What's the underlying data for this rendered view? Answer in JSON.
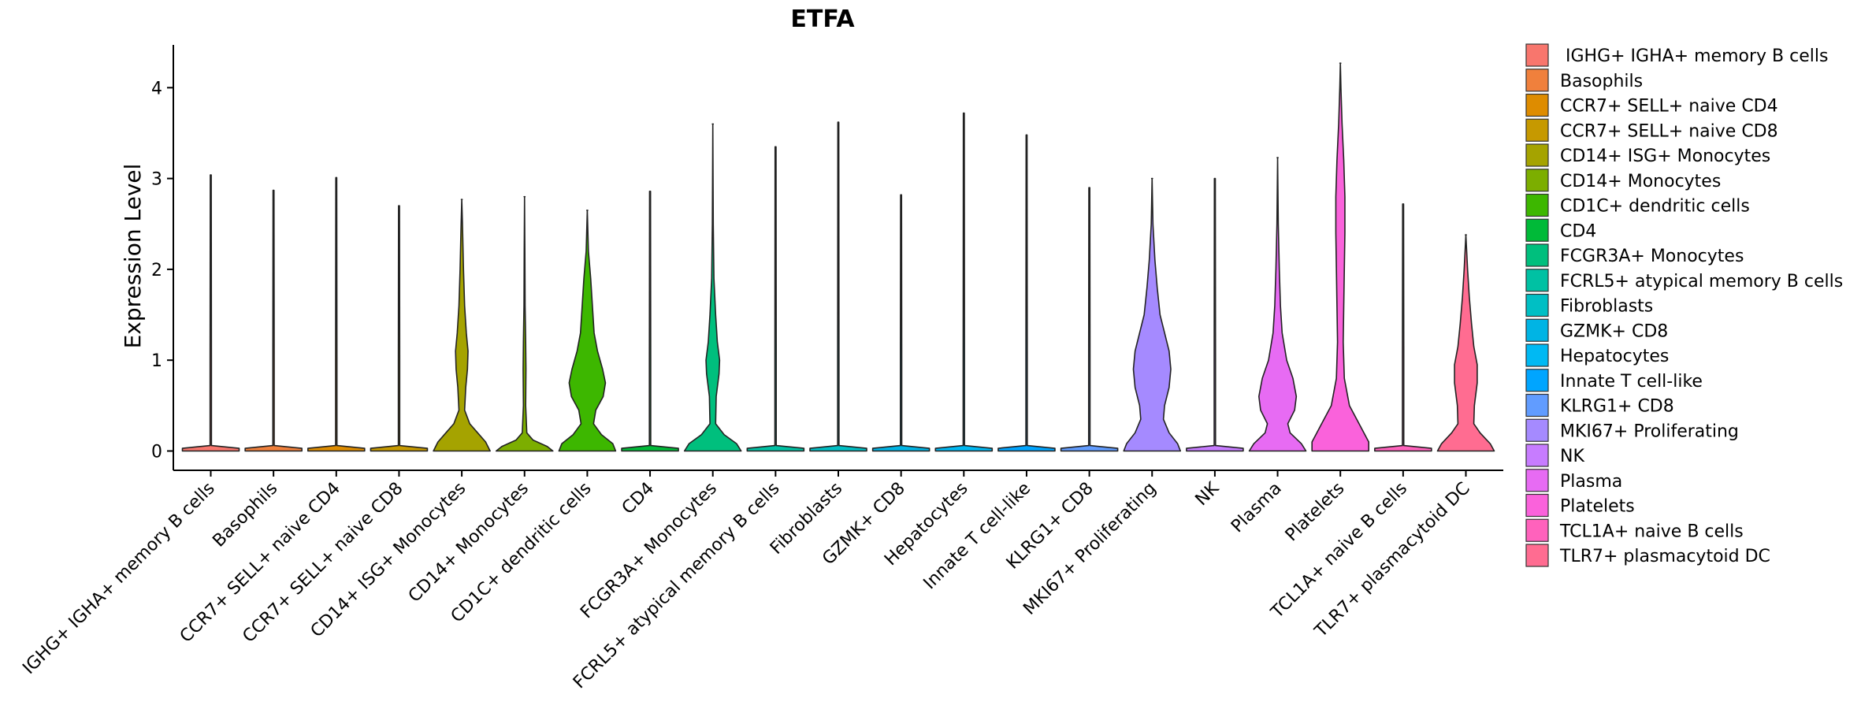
{
  "chart_data": {
    "type": "violin",
    "title": "ETFA",
    "xlabel": "",
    "ylabel": "Expression Level",
    "ylim": [
      -0.22,
      4.5
    ],
    "yticks": [
      0,
      1,
      2,
      3,
      4
    ],
    "yticklabels": [
      "0",
      "1",
      "2",
      "3",
      "4"
    ],
    "legend_position": "right",
    "legend_entries": [
      " IGHG+ IGHA+ memory B cells",
      "Basophils",
      "CCR7+ SELL+ naive CD4",
      "CCR7+ SELL+ naive CD8",
      "CD14+ ISG+ Monocytes",
      "CD14+ Monocytes",
      "CD1C+ dendritic cells",
      "CD4",
      "FCGR3A+ Monocytes",
      "FCRL5+ atypical memory B cells",
      "Fibroblasts",
      "GZMK+ CD8",
      "Hepatocytes",
      "Innate T cell-like",
      "KLRG1+ CD8",
      "MKI67+ Proliferating",
      "NK",
      "Plasma",
      "Platelets",
      "TCL1A+ naive B cells",
      "TLR7+ plasmacytoid DC"
    ],
    "categories": [
      "IGHG+ IGHA+ memory B cells",
      "Basophils",
      "CCR7+ SELL+ naive CD4",
      "CCR7+ SELL+ naive CD8",
      "CD14+ ISG+ Monocytes",
      "CD14+ Monocytes",
      "CD1C+ dendritic cells",
      "CD4",
      "FCGR3A+ Monocytes",
      "FCRL5+ atypical memory B cells",
      "Fibroblasts",
      "GZMK+ CD8",
      "Hepatocytes",
      "Innate T cell-like",
      "KLRG1+ CD8",
      "MKI67+ Proliferating",
      "NK",
      "Plasma",
      "Platelets",
      "TCL1A+ naive B cells",
      "TLR7+ plasmacytoid DC"
    ],
    "colors": [
      "#F8766D",
      "#F0803C",
      "#DE8C00",
      "#C69900",
      "#A5A300",
      "#7CAE00",
      "#3DB700",
      "#00BA38",
      "#00BF7D",
      "#00C1A3",
      "#00BFC4",
      "#00B4E4",
      "#00B9F3",
      "#00A5FF",
      "#619CFF",
      "#A58AFF",
      "#C77CFF",
      "#E76BF3",
      "#FA62DB",
      "#FF62BC",
      "#FF6C91"
    ],
    "series": [
      {
        "name": "IGHG+ IGHA+ memory B cells",
        "max": 3.04,
        "profile": [
          [
            0,
            0.5
          ],
          [
            0.03,
            0.5
          ],
          [
            0.06,
            0.012
          ],
          [
            1,
            0.012
          ]
        ]
      },
      {
        "name": "Basophils",
        "max": 2.87,
        "profile": [
          [
            0,
            0.5
          ],
          [
            0.03,
            0.5
          ],
          [
            0.06,
            0.012
          ],
          [
            1,
            0.012
          ]
        ]
      },
      {
        "name": "CCR7+ SELL+ naive CD4",
        "max": 3.01,
        "profile": [
          [
            0,
            0.5
          ],
          [
            0.03,
            0.5
          ],
          [
            0.06,
            0.012
          ],
          [
            1,
            0.012
          ]
        ]
      },
      {
        "name": "CCR7+ SELL+ naive CD8",
        "max": 2.7,
        "profile": [
          [
            0,
            0.5
          ],
          [
            0.03,
            0.5
          ],
          [
            0.06,
            0.012
          ],
          [
            1,
            0.012
          ]
        ]
      },
      {
        "name": "CD14+ ISG+ Monocytes",
        "max": 2.77,
        "profile": [
          [
            0,
            0.5
          ],
          [
            0.1,
            0.42
          ],
          [
            0.2,
            0.28
          ],
          [
            0.3,
            0.14
          ],
          [
            0.45,
            0.05
          ],
          [
            0.7,
            0.07
          ],
          [
            0.9,
            0.1
          ],
          [
            1.1,
            0.11
          ],
          [
            1.3,
            0.08
          ],
          [
            1.6,
            0.05
          ],
          [
            2.0,
            0.03
          ],
          [
            2.5,
            0.012
          ],
          [
            2.77,
            0
          ]
        ]
      },
      {
        "name": "CD14+ Monocytes",
        "max": 2.8,
        "profile": [
          [
            0,
            0.5
          ],
          [
            0.05,
            0.4
          ],
          [
            0.12,
            0.15
          ],
          [
            0.2,
            0.04
          ],
          [
            0.5,
            0.02
          ],
          [
            0.9,
            0.025
          ],
          [
            1.2,
            0.02
          ],
          [
            1.6,
            0.01
          ],
          [
            2.2,
            0.006
          ],
          [
            2.8,
            0
          ]
        ]
      },
      {
        "name": "CD1C+ dendritic cells",
        "max": 2.65,
        "profile": [
          [
            0,
            0.5
          ],
          [
            0.08,
            0.45
          ],
          [
            0.18,
            0.25
          ],
          [
            0.3,
            0.11
          ],
          [
            0.45,
            0.15
          ],
          [
            0.6,
            0.28
          ],
          [
            0.75,
            0.32
          ],
          [
            0.9,
            0.27
          ],
          [
            1.1,
            0.18
          ],
          [
            1.3,
            0.12
          ],
          [
            1.6,
            0.09
          ],
          [
            1.9,
            0.06
          ],
          [
            2.2,
            0.02
          ],
          [
            2.65,
            0
          ]
        ]
      },
      {
        "name": "CD4",
        "max": 2.86,
        "profile": [
          [
            0,
            0.5
          ],
          [
            0.03,
            0.5
          ],
          [
            0.06,
            0.012
          ],
          [
            1,
            0.012
          ]
        ]
      },
      {
        "name": "FCGR3A+ Monocytes",
        "max": 3.6,
        "profile": [
          [
            0,
            0.5
          ],
          [
            0.08,
            0.42
          ],
          [
            0.18,
            0.2
          ],
          [
            0.3,
            0.05
          ],
          [
            0.6,
            0.06
          ],
          [
            0.85,
            0.11
          ],
          [
            1.0,
            0.12
          ],
          [
            1.2,
            0.08
          ],
          [
            1.5,
            0.05
          ],
          [
            1.9,
            0.02
          ],
          [
            2.5,
            0.008
          ],
          [
            3.6,
            0
          ]
        ]
      },
      {
        "name": "FCRL5+ atypical memory B cells",
        "max": 3.35,
        "profile": [
          [
            0,
            0.5
          ],
          [
            0.03,
            0.5
          ],
          [
            0.06,
            0.012
          ],
          [
            1,
            0.012
          ]
        ]
      },
      {
        "name": "Fibroblasts",
        "max": 3.62,
        "profile": [
          [
            0,
            0.5
          ],
          [
            0.03,
            0.5
          ],
          [
            0.06,
            0.012
          ],
          [
            1,
            0.012
          ]
        ]
      },
      {
        "name": "GZMK+ CD8",
        "max": 2.82,
        "profile": [
          [
            0,
            0.5
          ],
          [
            0.03,
            0.5
          ],
          [
            0.06,
            0.012
          ],
          [
            1,
            0.012
          ]
        ]
      },
      {
        "name": "Hepatocytes",
        "max": 3.72,
        "profile": [
          [
            0,
            0.5
          ],
          [
            0.03,
            0.5
          ],
          [
            0.06,
            0.012
          ],
          [
            1,
            0.012
          ]
        ]
      },
      {
        "name": "Innate T cell-like",
        "max": 3.48,
        "profile": [
          [
            0,
            0.5
          ],
          [
            0.03,
            0.5
          ],
          [
            0.06,
            0.012
          ],
          [
            1,
            0.012
          ]
        ]
      },
      {
        "name": "KLRG1+ CD8",
        "max": 2.9,
        "profile": [
          [
            0,
            0.5
          ],
          [
            0.03,
            0.5
          ],
          [
            0.06,
            0.012
          ],
          [
            1,
            0.012
          ]
        ]
      },
      {
        "name": "MKI67+ Proliferating",
        "max": 3.0,
        "profile": [
          [
            0,
            0.5
          ],
          [
            0.08,
            0.45
          ],
          [
            0.2,
            0.3
          ],
          [
            0.35,
            0.2
          ],
          [
            0.5,
            0.22
          ],
          [
            0.7,
            0.3
          ],
          [
            0.9,
            0.33
          ],
          [
            1.1,
            0.3
          ],
          [
            1.3,
            0.22
          ],
          [
            1.5,
            0.14
          ],
          [
            1.8,
            0.09
          ],
          [
            2.1,
            0.05
          ],
          [
            2.5,
            0.015
          ],
          [
            3.0,
            0
          ]
        ]
      },
      {
        "name": "NK",
        "max": 3.0,
        "profile": [
          [
            0,
            0.5
          ],
          [
            0.03,
            0.5
          ],
          [
            0.06,
            0.012
          ],
          [
            1,
            0.012
          ]
        ]
      },
      {
        "name": "Plasma",
        "max": 3.23,
        "profile": [
          [
            0,
            0.5
          ],
          [
            0.08,
            0.42
          ],
          [
            0.2,
            0.22
          ],
          [
            0.3,
            0.18
          ],
          [
            0.45,
            0.3
          ],
          [
            0.6,
            0.33
          ],
          [
            0.8,
            0.27
          ],
          [
            1.0,
            0.16
          ],
          [
            1.3,
            0.08
          ],
          [
            1.6,
            0.05
          ],
          [
            2.0,
            0.03
          ],
          [
            2.5,
            0.012
          ],
          [
            3.23,
            0
          ]
        ]
      },
      {
        "name": "Platelets",
        "max": 4.27,
        "profile": [
          [
            0,
            0.5
          ],
          [
            0.1,
            0.5
          ],
          [
            0.3,
            0.33
          ],
          [
            0.5,
            0.16
          ],
          [
            0.8,
            0.07
          ],
          [
            1.2,
            0.05
          ],
          [
            1.6,
            0.06
          ],
          [
            2.0,
            0.07
          ],
          [
            2.4,
            0.08
          ],
          [
            2.8,
            0.08
          ],
          [
            3.2,
            0.06
          ],
          [
            3.6,
            0.03
          ],
          [
            4.0,
            0.01
          ],
          [
            4.27,
            0
          ]
        ]
      },
      {
        "name": "TCL1A+ naive B cells",
        "max": 2.72,
        "profile": [
          [
            0,
            0.5
          ],
          [
            0.03,
            0.5
          ],
          [
            0.06,
            0.012
          ],
          [
            1,
            0.012
          ]
        ]
      },
      {
        "name": "TLR7+ plasmacytoid DC",
        "max": 2.38,
        "profile": [
          [
            0,
            0.5
          ],
          [
            0.08,
            0.43
          ],
          [
            0.2,
            0.25
          ],
          [
            0.3,
            0.14
          ],
          [
            0.5,
            0.15
          ],
          [
            0.75,
            0.2
          ],
          [
            0.95,
            0.2
          ],
          [
            1.15,
            0.14
          ],
          [
            1.4,
            0.1
          ],
          [
            1.7,
            0.06
          ],
          [
            2.0,
            0.03
          ],
          [
            2.38,
            0
          ]
        ]
      }
    ]
  }
}
